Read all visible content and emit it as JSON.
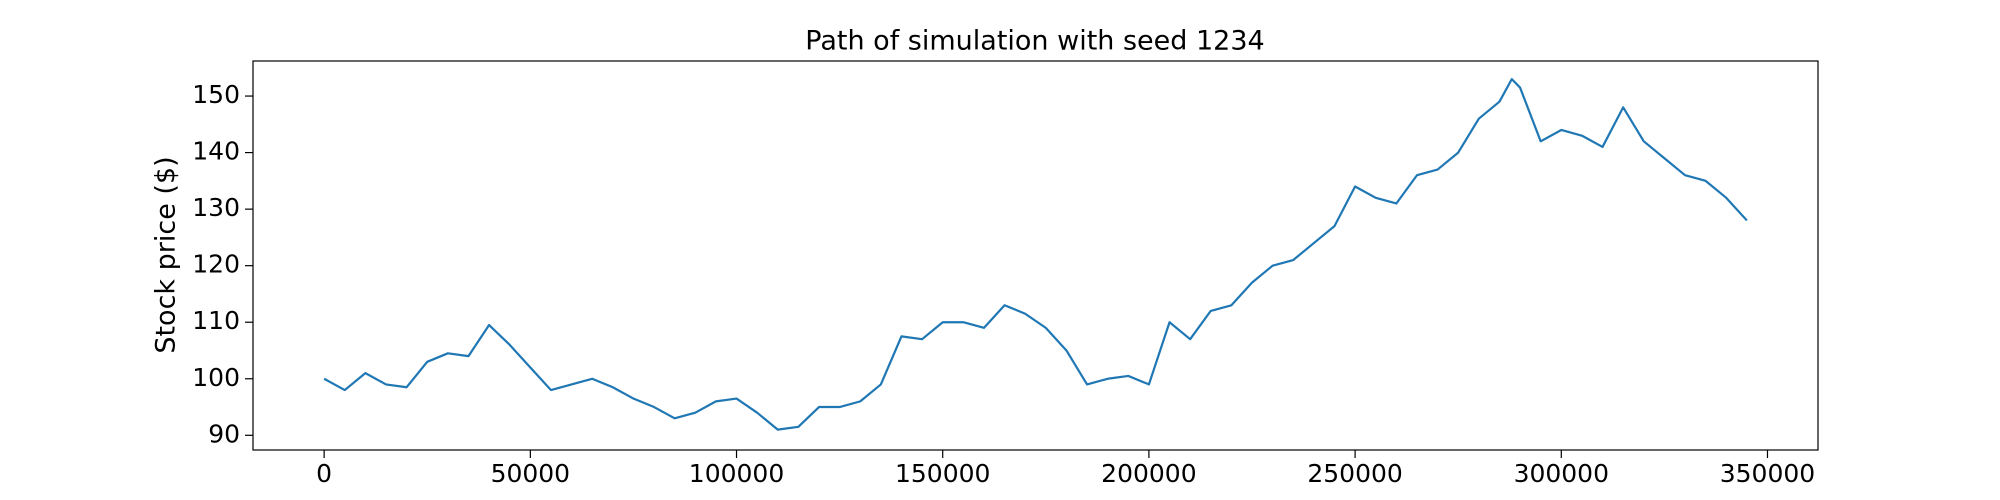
{
  "chart_data": {
    "type": "line",
    "title": "Path of simulation with seed 1234",
    "y_label": "Stock price ($)",
    "x": [
      0,
      5000,
      10000,
      15000,
      20000,
      25000,
      30000,
      35000,
      40000,
      45000,
      50000,
      55000,
      60000,
      65000,
      70000,
      75000,
      80000,
      85000,
      90000,
      95000,
      100000,
      105000,
      110000,
      115000,
      120000,
      125000,
      130000,
      135000,
      140000,
      145000,
      150000,
      155000,
      160000,
      165000,
      170000,
      175000,
      180000,
      185000,
      190000,
      195000,
      200000,
      205000,
      210000,
      215000,
      220000,
      225000,
      230000,
      235000,
      240000,
      245000,
      250000,
      255000,
      260000,
      265000,
      270000,
      275000,
      280000,
      285000,
      288000,
      290000,
      295000,
      300000,
      305000,
      310000,
      315000,
      320000,
      325000,
      330000,
      335000,
      340000,
      345000
    ],
    "series": [
      {
        "name": "path",
        "color": "#1f77b4",
        "values": [
          100,
          98,
          101,
          99,
          98.5,
          103,
          104.5,
          104,
          109.5,
          106,
          102,
          98,
          99,
          100,
          98.5,
          96.5,
          95,
          93,
          94,
          96,
          96.5,
          94,
          91,
          91.5,
          95,
          95,
          96,
          99,
          107.5,
          107,
          110,
          110,
          109,
          113,
          111.5,
          109,
          105,
          99,
          100,
          100.5,
          99,
          110,
          107,
          112,
          113,
          117,
          120,
          121,
          124,
          127,
          134,
          132,
          131,
          136,
          137,
          140,
          146,
          149,
          153,
          151.5,
          142,
          144,
          143,
          141,
          148,
          142,
          139,
          136,
          135,
          132,
          128
        ]
      }
    ],
    "xlim": [
      -17250,
      362250
    ],
    "ylim": [
      87.4,
      156.2
    ],
    "xticks": [
      0,
      50000,
      100000,
      150000,
      200000,
      250000,
      300000,
      350000
    ],
    "yticks": [
      90,
      100,
      110,
      120,
      130,
      140,
      150
    ],
    "grid": false
  }
}
